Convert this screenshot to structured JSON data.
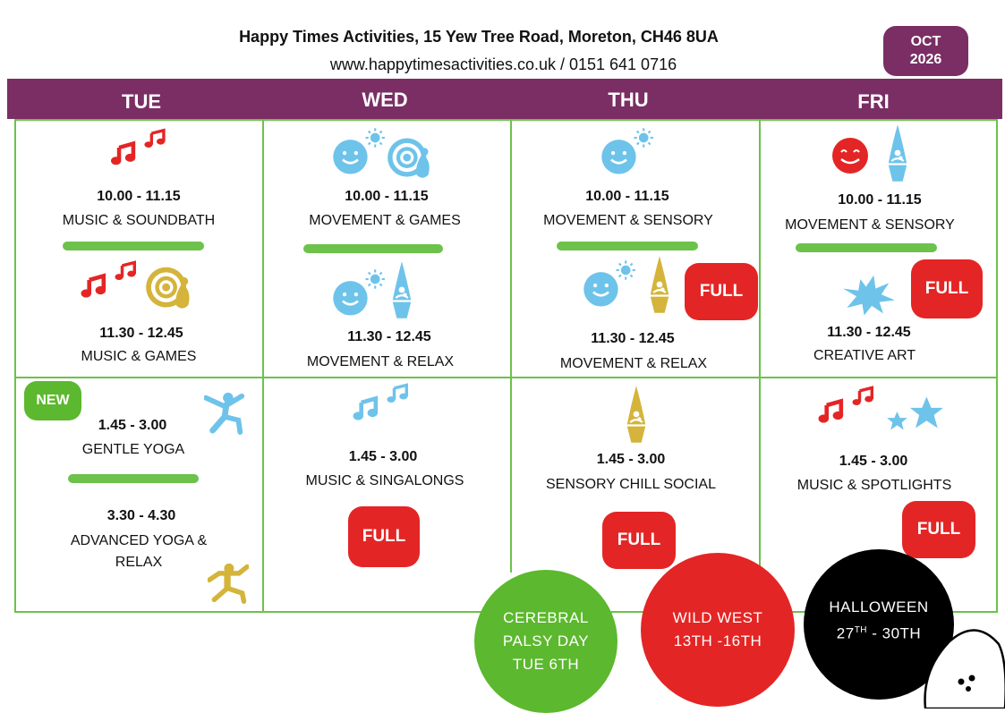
{
  "header": {
    "title": "Happy Times Activities, 15 Yew Tree Road, Moreton, CH46 8UA",
    "contact": "www.happytimesactivities.co.uk / 0151 641 0716",
    "month": "OCT",
    "year": "2026"
  },
  "days": [
    "TUE",
    "WED",
    "THU",
    "FRI"
  ],
  "sessions": {
    "tue_am1": {
      "time": "10.00 - 11.15",
      "name": "MUSIC & SOUNDBATH"
    },
    "tue_am2": {
      "time": "11.30 - 12.45",
      "name": "MUSIC & GAMES"
    },
    "tue_pm1": {
      "time": "1.45 - 3.00",
      "name": "GENTLE YOGA",
      "tag": "NEW"
    },
    "tue_pm2": {
      "time": "3.30 - 4.30",
      "name_line1": "ADVANCED YOGA &",
      "name_line2": "RELAX"
    },
    "wed_am1": {
      "time": "10.00 - 11.15",
      "name": "MOVEMENT & GAMES"
    },
    "wed_am2": {
      "time": "11.30 - 12.45",
      "name": "MOVEMENT & RELAX"
    },
    "wed_pm1": {
      "time": "1.45 - 3.00",
      "name": "MUSIC & SINGALONGS",
      "status": "FULL"
    },
    "thu_am1": {
      "time": "10.00 - 11.15",
      "name": "MOVEMENT & SENSORY"
    },
    "thu_am2": {
      "time": "11.30 - 12.45",
      "name": "MOVEMENT & RELAX",
      "status": "FULL"
    },
    "thu_pm1": {
      "time": "1.45 - 3.00",
      "name": "SENSORY CHILL SOCIAL",
      "status": "FULL"
    },
    "fri_am1": {
      "time": "10.00 - 11.15",
      "name": "MOVEMENT  & SENSORY"
    },
    "fri_am2": {
      "time": "11.30 - 12.45",
      "name": "CREATIVE ART",
      "status": "FULL"
    },
    "fri_pm1": {
      "time": "1.45 - 3.00",
      "name": "MUSIC & SPOTLIGHTS",
      "status": "FULL"
    }
  },
  "events": [
    {
      "lines": [
        "CEREBRAL",
        "PALSY DAY",
        "TUE 6TH"
      ],
      "color": "#5cb82e"
    },
    {
      "lines": [
        "WILD WEST",
        "13TH -16TH"
      ],
      "color": "#e42525"
    },
    {
      "line1": "HALLOWEEN",
      "line2_a": "27",
      "line2_sup": "TH",
      "line2_b": " - 30TH",
      "color": "#000000"
    }
  ],
  "colors": {
    "brand": "#7a2e64",
    "accent_green": "#6cc24a",
    "full_red": "#e42525",
    "icon_blue": "#6ec3ea",
    "icon_gold": "#d4b43a",
    "icon_red": "#e42525"
  },
  "icons": [
    "music-notes-icon",
    "smiley-sun-icon",
    "bowling-target-icon",
    "lava-lamp-icon",
    "paint-splat-icon",
    "stars-icon",
    "yoga-figure-icon",
    "ghost-icon"
  ]
}
